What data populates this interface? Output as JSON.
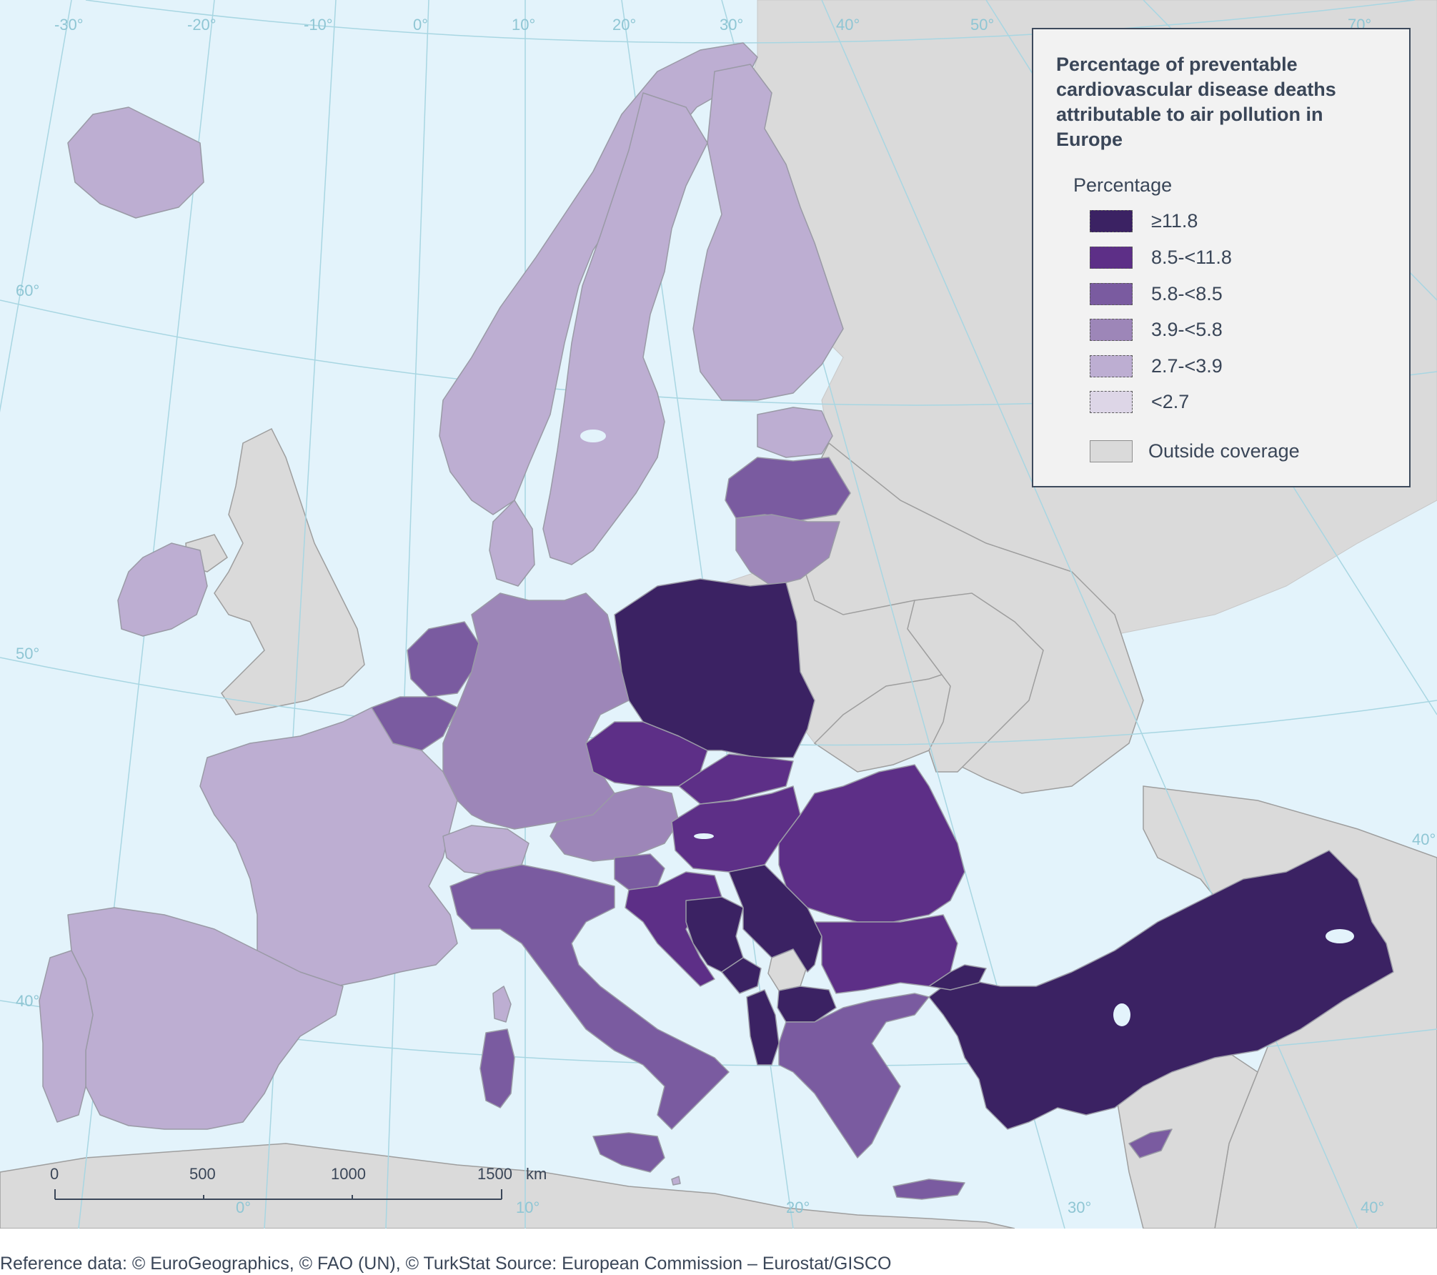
{
  "colors": {
    "sea": "#e3f3fb",
    "outside": "#dadada",
    "border": "#9e9e9e",
    "graticule": "#a8d6e2",
    "c1": "#3b2263",
    "c2": "#5d2f87",
    "c3": "#7a5ba0",
    "c4": "#9d86b8",
    "c5": "#bdaed2",
    "c6": "#ddd6e7"
  },
  "graticule_labels": {
    "top": [
      "-30°",
      "-20°",
      "-10°",
      "0°",
      "10°",
      "20°",
      "30°",
      "40°",
      "50°",
      "70°"
    ],
    "left": [
      "60°",
      "50°",
      "40°"
    ],
    "bottom": [
      "0°",
      "10°",
      "20°",
      "30°",
      "40°"
    ],
    "right": [
      "40°"
    ]
  },
  "legend": {
    "title": "Percentage of preventable cardiovascular disease deaths attributable to air pollution in Europe",
    "subtitle": "Percentage",
    "items": [
      {
        "label": "≥11.8",
        "color": "#3b2263"
      },
      {
        "label": "8.5-<11.8",
        "color": "#5d2f87"
      },
      {
        "label": "5.8-<8.5",
        "color": "#7a5ba0"
      },
      {
        "label": "3.9-<5.8",
        "color": "#9d86b8"
      },
      {
        "label": "2.7-<3.9",
        "color": "#bdaed2"
      },
      {
        "label": "<2.7",
        "color": "#ddd6e7"
      }
    ],
    "outside": {
      "label": "Outside coverage",
      "color": "#dadada"
    }
  },
  "scale_bar": {
    "ticks": [
      "0",
      "500",
      "1000",
      "1500"
    ],
    "unit": "km"
  },
  "credits": "Reference data: © EuroGeographics, © FAO (UN), © TurkStat Source: European Commission – Eurostat/GISCO"
}
